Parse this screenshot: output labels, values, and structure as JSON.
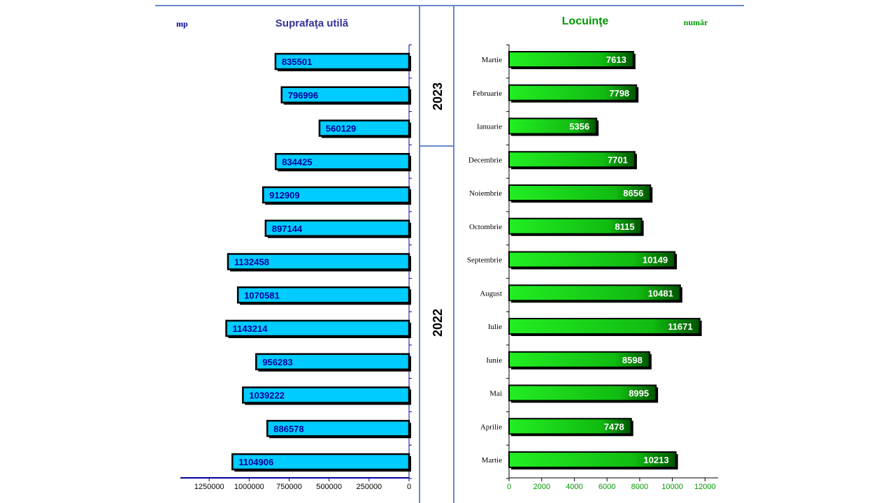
{
  "chart_data": [
    {
      "type": "bar",
      "orientation": "horizontal-reversed",
      "title": "Suprafaţa utilă",
      "unit_label": "mp",
      "categories": [
        "Martie",
        "Februarie",
        "Ianuarie",
        "Decembrie",
        "Noiembrie",
        "Octombrie",
        "Septembrie",
        "August",
        "Iulie",
        "Iunie",
        "Mai",
        "Aprilie",
        "Martie"
      ],
      "values": [
        835501,
        796996,
        560129,
        834425,
        912909,
        897144,
        1132458,
        1070581,
        1143214,
        956283,
        1039222,
        886578,
        1104906
      ],
      "value_labels": [
        "835501",
        "796996",
        "560129",
        "834425",
        "912909",
        "897144",
        "1132458",
        "1070581",
        "1143214",
        "956283",
        "1039222",
        "886578",
        "1104906"
      ],
      "xlim": [
        0,
        1430000
      ],
      "ticks": [
        1250000,
        1000000,
        750000,
        500000,
        250000,
        0
      ],
      "tick_labels": [
        "1250000",
        "1000000",
        "750000",
        "500000",
        "250000",
        "0"
      ],
      "bar_color": "#00ccff",
      "label_color": "#000099",
      "title_color": "#333399"
    },
    {
      "type": "bar",
      "orientation": "horizontal",
      "title": "Locuinţe",
      "unit_label": "număr",
      "categories": [
        "Martie",
        "Februarie",
        "Ianuarie",
        "Decembrie",
        "Noiembrie",
        "Octombrie",
        "Septembrie",
        "August",
        "Iulie",
        "Iunie",
        "Mai",
        "Aprilie",
        "Martie"
      ],
      "values": [
        7613,
        7798,
        5356,
        7701,
        8656,
        8115,
        10149,
        10481,
        11671,
        8598,
        8995,
        7478,
        10213
      ],
      "value_labels": [
        "7613",
        "7798",
        "5356",
        "7701",
        "8656",
        "8115",
        "10149",
        "10481",
        "11671",
        "8598",
        "8995",
        "7478",
        "10213"
      ],
      "xlim": [
        0,
        12800
      ],
      "ticks": [
        0,
        2000,
        4000,
        6000,
        8000,
        10000,
        12000
      ],
      "tick_labels": [
        "0",
        "2000",
        "4000",
        "6000",
        "8000",
        "10000",
        "12000"
      ],
      "bar_color": "#22ee22",
      "label_color": "#ffffff",
      "title_color": "#009900"
    }
  ],
  "year_labels": {
    "top": "2023",
    "bottom": "2022"
  },
  "colors": {
    "divider": "#6688cc",
    "axis_left": "#000099",
    "axis_right": "#009900"
  }
}
